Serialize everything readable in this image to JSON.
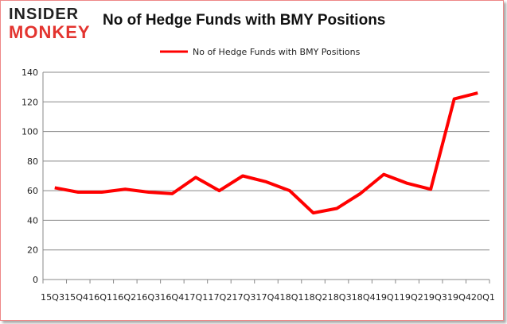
{
  "logo": {
    "line1": "INSIDER",
    "line2": "MONKEY"
  },
  "chart_data": {
    "type": "line",
    "title": "No of Hedge Funds with BMY Positions",
    "categories": [
      "15Q3",
      "15Q4",
      "16Q1",
      "16Q2",
      "16Q3",
      "16Q4",
      "17Q1",
      "17Q2",
      "17Q3",
      "17Q4",
      "18Q1",
      "18Q2",
      "18Q3",
      "18Q4",
      "19Q1",
      "19Q2",
      "19Q3",
      "19Q4",
      "20Q1"
    ],
    "series": [
      {
        "name": "No of Hedge Funds with BMY Positions",
        "color": "#ff0000",
        "values": [
          62,
          59,
          59,
          61,
          59,
          58,
          69,
          60,
          70,
          66,
          60,
          45,
          48,
          58,
          71,
          65,
          61,
          122,
          126
        ]
      }
    ],
    "ylim": [
      0,
      140
    ],
    "yticks": [
      0,
      20,
      40,
      60,
      80,
      100,
      120,
      140
    ],
    "grid": true,
    "legend": "top-center",
    "xlabel": "",
    "ylabel": ""
  }
}
